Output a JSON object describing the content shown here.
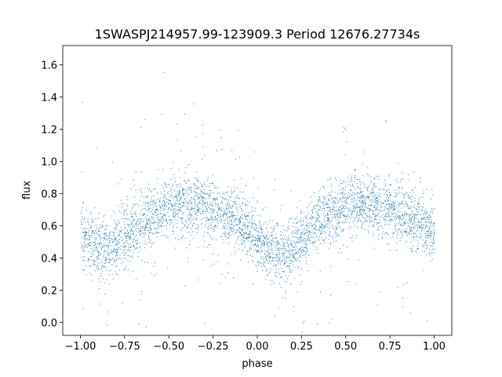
{
  "chart_data": {
    "type": "scatter",
    "title": "1SWASPJ214957.99-123909.3 Period 12676.27734s",
    "xlabel": "phase",
    "ylabel": "flux",
    "xlim": [
      -1.1,
      1.1
    ],
    "ylim": [
      -0.08,
      1.72
    ],
    "x_ticks": [
      -1.0,
      -0.75,
      -0.5,
      -0.25,
      0.0,
      0.25,
      0.5,
      0.75,
      1.0
    ],
    "x_tick_labels": [
      "−1.00",
      "−0.75",
      "−0.50",
      "−0.25",
      "0.00",
      "0.25",
      "0.50",
      "0.75",
      "1.00"
    ],
    "y_ticks": [
      0.0,
      0.2,
      0.4,
      0.6,
      0.8,
      1.0,
      1.2,
      1.4,
      1.6
    ],
    "y_tick_labels": [
      "0.0",
      "0.2",
      "0.4",
      "0.6",
      "0.8",
      "1.0",
      "1.2",
      "1.4",
      "1.6"
    ],
    "grid": false,
    "point_color": "#1f77b4",
    "phase_curve": {
      "x": [
        -1.0,
        -0.9,
        -0.85,
        -0.75,
        -0.65,
        -0.5,
        -0.45,
        -0.35,
        -0.25,
        -0.15,
        -0.05,
        0.0,
        0.1,
        0.15,
        0.25,
        0.35,
        0.5,
        0.55,
        0.65,
        0.75,
        0.85,
        0.95,
        1.0
      ],
      "median_flux": [
        0.55,
        0.45,
        0.45,
        0.52,
        0.63,
        0.72,
        0.75,
        0.74,
        0.7,
        0.65,
        0.58,
        0.52,
        0.42,
        0.43,
        0.53,
        0.64,
        0.73,
        0.75,
        0.74,
        0.7,
        0.66,
        0.6,
        0.55
      ],
      "flux_scatter_sigma": 0.09
    }
  }
}
